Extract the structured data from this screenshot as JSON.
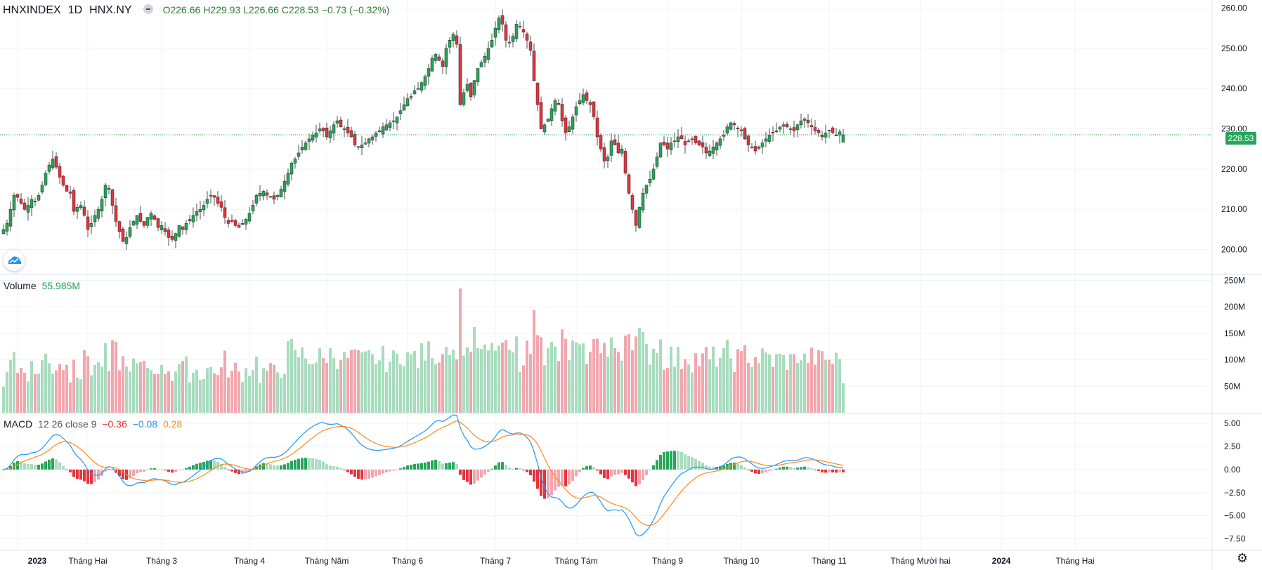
{
  "header": {
    "symbol": "HNXINDEX",
    "interval": "1D",
    "exchange": "HNX.NY",
    "open": "O226.66",
    "high": "H229.93",
    "low": "L226.66",
    "close": "C228.53",
    "change": "−0.73 (−0.32%)"
  },
  "last_price": "228.53",
  "volume_legend": {
    "label": "Volume",
    "value": "55.985M"
  },
  "macd_legend": {
    "label": "MACD",
    "params": "12 26 close 9",
    "hist": "−0.36",
    "macd": "−0.08",
    "signal": "0.28"
  },
  "colors": {
    "up": "#26a65b",
    "down": "#e5333d",
    "vol_up": "#a8dcbe",
    "vol_down": "#f3a6ae",
    "macd_line": "#2196f3",
    "signal_line": "#ff8a1e",
    "grid": "#f0f3fa"
  },
  "icons": {
    "logo": "tradingview-cloud-icon",
    "settings": "gear-icon"
  },
  "chart_data": [
    {
      "type": "candlestick",
      "title": "HNXINDEX",
      "y_ticks": [
        "260.00",
        "250.00",
        "240.00",
        "230.00",
        "220.00",
        "210.00",
        "200.00"
      ],
      "ylim": [
        194,
        262
      ],
      "x_ticks": [
        "2023",
        "Tháng Hai",
        "Tháng 3",
        "Tháng 4",
        "Tháng Năm",
        "Tháng 6",
        "Tháng 7",
        "Tháng Tám",
        "Tháng 9",
        "Tháng 10",
        "Tháng 11",
        "Tháng Mười hai",
        "2024",
        "Tháng Hai"
      ],
      "x_tick_bar_index": [
        4,
        24,
        45,
        70,
        92,
        115,
        140,
        163,
        189,
        210,
        235,
        261,
        284,
        305
      ],
      "close_series": [
        205.0,
        206.5,
        210.0,
        213.5,
        213.0,
        211.5,
        210.0,
        211.0,
        212.5,
        212.0,
        213.5,
        216.0,
        219.0,
        221.0,
        222.5,
        220.5,
        218.0,
        216.0,
        214.5,
        214.0,
        209.5,
        210.5,
        211.0,
        208.5,
        205.0,
        206.5,
        208.5,
        210.0,
        212.5,
        216.0,
        215.0,
        211.0,
        207.0,
        204.5,
        202.0,
        203.0,
        205.5,
        207.0,
        208.5,
        207.0,
        206.0,
        208.0,
        209.0,
        207.5,
        205.5,
        206.0,
        204.5,
        203.0,
        202.5,
        204.0,
        206.0,
        205.0,
        206.5,
        207.5,
        208.5,
        209.5,
        210.0,
        211.0,
        212.5,
        213.5,
        213.0,
        211.5,
        210.5,
        208.0,
        206.5,
        207.0,
        206.0,
        205.5,
        206.5,
        207.5,
        209.0,
        211.0,
        213.5,
        214.0,
        214.5,
        213.5,
        213.0,
        212.5,
        213.5,
        215.0,
        217.0,
        219.0,
        221.5,
        222.5,
        224.0,
        225.5,
        226.5,
        227.5,
        228.5,
        229.0,
        230.0,
        229.5,
        228.0,
        229.5,
        231.0,
        232.0,
        230.5,
        230.0,
        229.0,
        228.0,
        226.0,
        225.5,
        226.0,
        226.5,
        227.5,
        228.0,
        229.0,
        229.5,
        230.5,
        231.0,
        231.5,
        232.0,
        233.0,
        234.5,
        236.0,
        237.5,
        238.0,
        239.5,
        240.0,
        241.5,
        243.0,
        245.0,
        247.5,
        248.5,
        247.0,
        245.5,
        250.0,
        252.0,
        253.5,
        251.0,
        236.0,
        239.0,
        241.0,
        238.0,
        242.0,
        245.0,
        246.5,
        248.0,
        250.0,
        252.0,
        255.0,
        257.5,
        256.0,
        252.0,
        251.5,
        253.0,
        256.0,
        255.5,
        254.0,
        252.0,
        249.5,
        242.0,
        236.0,
        230.0,
        231.0,
        232.5,
        235.0,
        237.0,
        236.0,
        232.0,
        229.0,
        230.5,
        233.0,
        235.5,
        237.0,
        238.5,
        237.0,
        236.0,
        233.0,
        228.0,
        225.0,
        222.0,
        223.0,
        227.0,
        226.0,
        224.0,
        225.0,
        219.0,
        214.0,
        210.0,
        206.0,
        210.5,
        214.0,
        216.0,
        217.5,
        220.0,
        223.0,
        226.5,
        226.0,
        225.0,
        226.5,
        227.0,
        228.0,
        227.5,
        226.0,
        227.0,
        227.5,
        226.5,
        226.0,
        225.5,
        224.0,
        224.5,
        225.5,
        226.5,
        227.5,
        228.5,
        230.5,
        231.5,
        231.0,
        230.0,
        229.5,
        227.5,
        226.0,
        225.5,
        224.5,
        225.5,
        226.5,
        227.5,
        228.5,
        229.0,
        229.5,
        230.5,
        231.0,
        230.5,
        230.0,
        229.5,
        231.0,
        232.0,
        232.5,
        231.5,
        230.5,
        229.5,
        229.0,
        228.0,
        229.0,
        229.5,
        229.0,
        228.5,
        229.26,
        228.53
      ],
      "last": {
        "open": 226.66,
        "high": 229.93,
        "low": 226.66,
        "close": 228.53
      }
    },
    {
      "type": "bar",
      "title": "Volume",
      "y_ticks": [
        "250M",
        "200M",
        "150M",
        "100M",
        "50M"
      ],
      "ylim": [
        0,
        260
      ],
      "unit": "M",
      "peak_values_M": {
        "volume_max": 235,
        "late_spike": 185
      },
      "last_value_M": 55.985
    },
    {
      "type": "line",
      "title": "MACD",
      "series": [
        {
          "name": "MACD",
          "role": "macd"
        },
        {
          "name": "signal",
          "role": "signal"
        },
        {
          "name": "histogram",
          "role": "histogram"
        }
      ],
      "y_ticks": [
        "5.00",
        "2.50",
        "0.00",
        "−2.50",
        "−5.00",
        "−7.50"
      ],
      "ylim": [
        -8.6,
        6.0
      ]
    }
  ]
}
